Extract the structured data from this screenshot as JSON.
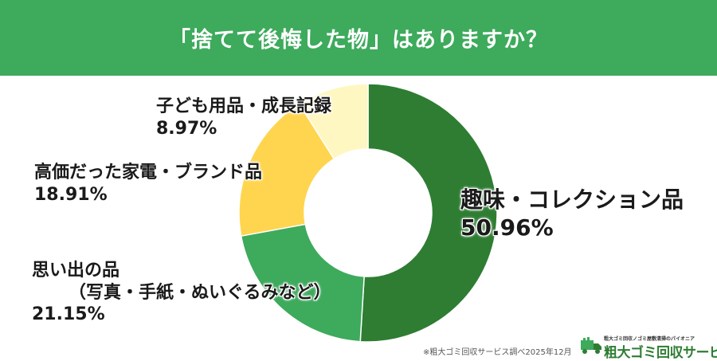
{
  "chart_data": {
    "type": "pie",
    "title": "「捨てて後悔した物」はありますか？",
    "categories": [
      "趣味・コレクション品",
      "思い出の品（写真・手紙・ぬいぐるみなど）",
      "高価だった家電・ブランド品",
      "子ども用品・成長記録"
    ],
    "values": [
      50.96,
      21.15,
      18.91,
      8.97
    ],
    "value_labels": [
      "50.96%",
      "21.15%",
      "18.91%",
      "8.97%"
    ],
    "colors": [
      "#2e7d32",
      "#3daa5c",
      "#ffd54f",
      "#fff7c2"
    ],
    "donut": true,
    "legend": "none"
  },
  "labels": {
    "hobby": {
      "name": "趣味・コレクション品",
      "pct": "50.96%"
    },
    "memory": {
      "name": "思い出の品",
      "sub": "（写真・手紙・ぬいぐるみなど）",
      "pct": "21.15%"
    },
    "luxury": {
      "name": "高価だった家電・ブランド品",
      "pct": "18.91%"
    },
    "child": {
      "name": "子ども用品・成長記録",
      "pct": "8.97%"
    }
  },
  "footer": {
    "source_note": "※粗大ゴミ回収サービス調べ2025年12月",
    "logo_tagline": "粗大ゴミ回収ノゴミ屋敷清掃のパイオニア",
    "logo_name": "粗大ゴミ回収サービス"
  },
  "theme": {
    "header_bg": "#3daa5c",
    "header_text": "#ffffff"
  }
}
